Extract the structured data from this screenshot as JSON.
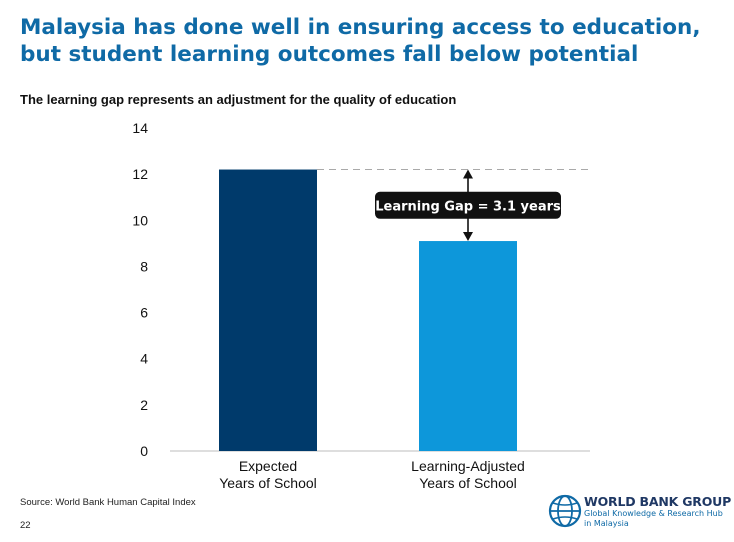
{
  "page": {
    "title_line1": "Malaysia has done well in ensuring access to education,",
    "title_line2": "but student learning outcomes fall below potential",
    "subtitle": "The learning gap represents an adjustment for the quality of education",
    "source": "Source: World Bank Human Capital Index",
    "page_number": "22"
  },
  "logo": {
    "name": "WORLD BANK GROUP",
    "sub_line1": "Global Knowledge & Research Hub",
    "sub_line2": "in Malaysia",
    "icon": "globe-icon"
  },
  "chart_data": {
    "type": "bar",
    "categories": [
      [
        "Expected",
        "Years of School"
      ],
      [
        "Learning-Adjusted",
        "Years of School"
      ]
    ],
    "values": [
      12.2,
      9.1
    ],
    "colors": [
      "#003a6b",
      "#0d97da"
    ],
    "yticks": [
      0,
      2,
      4,
      6,
      8,
      10,
      12,
      14
    ],
    "ylim": [
      0,
      14
    ],
    "grid": false,
    "annotation": {
      "text": "Learning Gap = 3.1 years",
      "from": 12.2,
      "to": 9.1,
      "box_color": "#111111"
    }
  }
}
